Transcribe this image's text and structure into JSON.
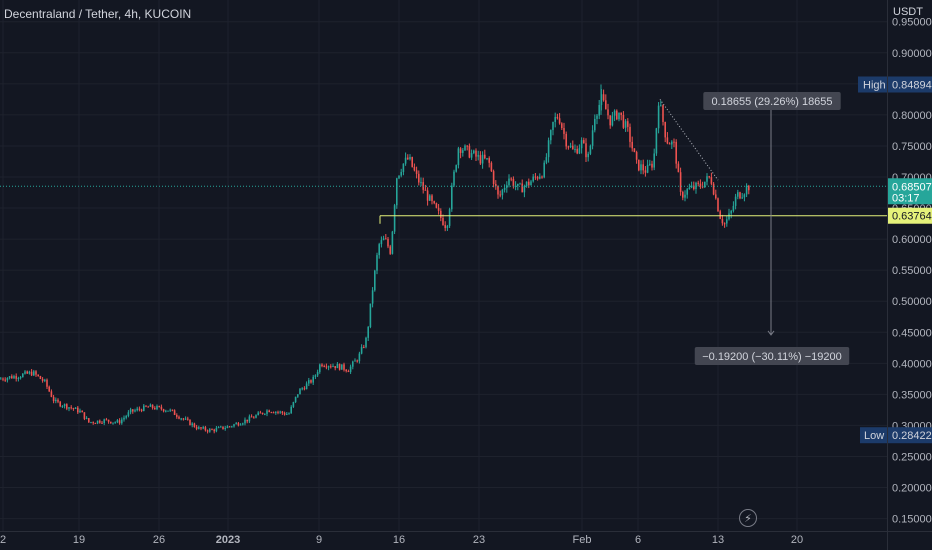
{
  "header": {
    "title": "Decentraland / Tether, 4h, KUCOIN"
  },
  "axis_unit": "USDT",
  "chart_data": {
    "type": "candlestick",
    "title": "Decentraland / Tether, 4h, KUCOIN",
    "ylim": [
      0.13,
      0.985
    ],
    "y_ticks": [
      0.95,
      0.9,
      0.85,
      0.8,
      0.75,
      0.7,
      0.65,
      0.6,
      0.55,
      0.5,
      0.45,
      0.4,
      0.35,
      0.3,
      0.25,
      0.2,
      0.15
    ],
    "y_tick_labels": [
      "0.95000",
      "0.90000",
      "0.85000",
      "0.80000",
      "0.75000",
      "0.70000",
      "0.65000",
      "0.60000",
      "0.55000",
      "0.50000",
      "0.45000",
      "0.40000",
      "0.35000",
      "0.30000",
      "0.25000",
      "0.20000",
      "0.15000"
    ],
    "x_ticks": [
      {
        "label": "2",
        "x": 3
      },
      {
        "label": "19",
        "x": 79
      },
      {
        "label": "26",
        "x": 159
      },
      {
        "label": "2023",
        "x": 228
      },
      {
        "label": "9",
        "x": 319
      },
      {
        "label": "16",
        "x": 399
      },
      {
        "label": "23",
        "x": 479
      },
      {
        "label": "Feb",
        "x": 582
      },
      {
        "label": "6",
        "x": 638
      },
      {
        "label": "13",
        "x": 718
      },
      {
        "label": "20",
        "x": 797
      }
    ],
    "price_path": [
      [
        0,
        0.375
      ],
      [
        20,
        0.38
      ],
      [
        34,
        0.385
      ],
      [
        46,
        0.37
      ],
      [
        56,
        0.338
      ],
      [
        70,
        0.33
      ],
      [
        82,
        0.322
      ],
      [
        90,
        0.305
      ],
      [
        105,
        0.308
      ],
      [
        120,
        0.305
      ],
      [
        132,
        0.322
      ],
      [
        150,
        0.33
      ],
      [
        170,
        0.325
      ],
      [
        185,
        0.31
      ],
      [
        200,
        0.295
      ],
      [
        212,
        0.292
      ],
      [
        230,
        0.298
      ],
      [
        250,
        0.31
      ],
      [
        270,
        0.325
      ],
      [
        290,
        0.318
      ],
      [
        300,
        0.355
      ],
      [
        315,
        0.375
      ],
      [
        322,
        0.4
      ],
      [
        340,
        0.395
      ],
      [
        350,
        0.39
      ],
      [
        360,
        0.41
      ],
      [
        368,
        0.44
      ],
      [
        374,
        0.52
      ],
      [
        380,
        0.59
      ],
      [
        386,
        0.6
      ],
      [
        392,
        0.58
      ],
      [
        398,
        0.7
      ],
      [
        404,
        0.72
      ],
      [
        410,
        0.73
      ],
      [
        418,
        0.7
      ],
      [
        425,
        0.68
      ],
      [
        432,
        0.66
      ],
      [
        440,
        0.64
      ],
      [
        448,
        0.62
      ],
      [
        455,
        0.7
      ],
      [
        460,
        0.75
      ],
      [
        470,
        0.74
      ],
      [
        480,
        0.73
      ],
      [
        490,
        0.725
      ],
      [
        500,
        0.665
      ],
      [
        510,
        0.7
      ],
      [
        520,
        0.68
      ],
      [
        530,
        0.69
      ],
      [
        545,
        0.71
      ],
      [
        555,
        0.79
      ],
      [
        560,
        0.8
      ],
      [
        567,
        0.76
      ],
      [
        575,
        0.74
      ],
      [
        583,
        0.755
      ],
      [
        590,
        0.73
      ],
      [
        596,
        0.8
      ],
      [
        603,
        0.825
      ],
      [
        612,
        0.79
      ],
      [
        620,
        0.805
      ],
      [
        630,
        0.77
      ],
      [
        638,
        0.72
      ],
      [
        648,
        0.71
      ],
      [
        655,
        0.725
      ],
      [
        660,
        0.825
      ],
      [
        668,
        0.76
      ],
      [
        676,
        0.75
      ],
      [
        682,
        0.67
      ],
      [
        690,
        0.68
      ],
      [
        700,
        0.685
      ],
      [
        712,
        0.7
      ],
      [
        718,
        0.66
      ],
      [
        722,
        0.635
      ],
      [
        726,
        0.625
      ],
      [
        732,
        0.64
      ],
      [
        738,
        0.67
      ],
      [
        744,
        0.675
      ],
      [
        749,
        0.685
      ]
    ],
    "current_price": {
      "value": 0.68507,
      "label": "0.68507",
      "countdown": "03:17"
    },
    "horizontal_line": {
      "value": 0.63764,
      "label": "0.63764",
      "x_start": 380
    },
    "high": {
      "label": "High",
      "value": 0.84894,
      "value_label": "0.84894"
    },
    "low": {
      "label": "Low",
      "value": 0.28422,
      "value_label": "0.28422"
    },
    "measure_up": {
      "text": "0.18655 (29.26%) 18655",
      "from": 0.63764,
      "to": 0.82419
    },
    "measure_down": {
      "text": "−0.19200 (−30.11%) −19200",
      "from": 0.63764,
      "to": 0.44564
    },
    "trend_line": {
      "from": [
        660,
        0.825
      ],
      "to": [
        718,
        0.695
      ]
    }
  }
}
